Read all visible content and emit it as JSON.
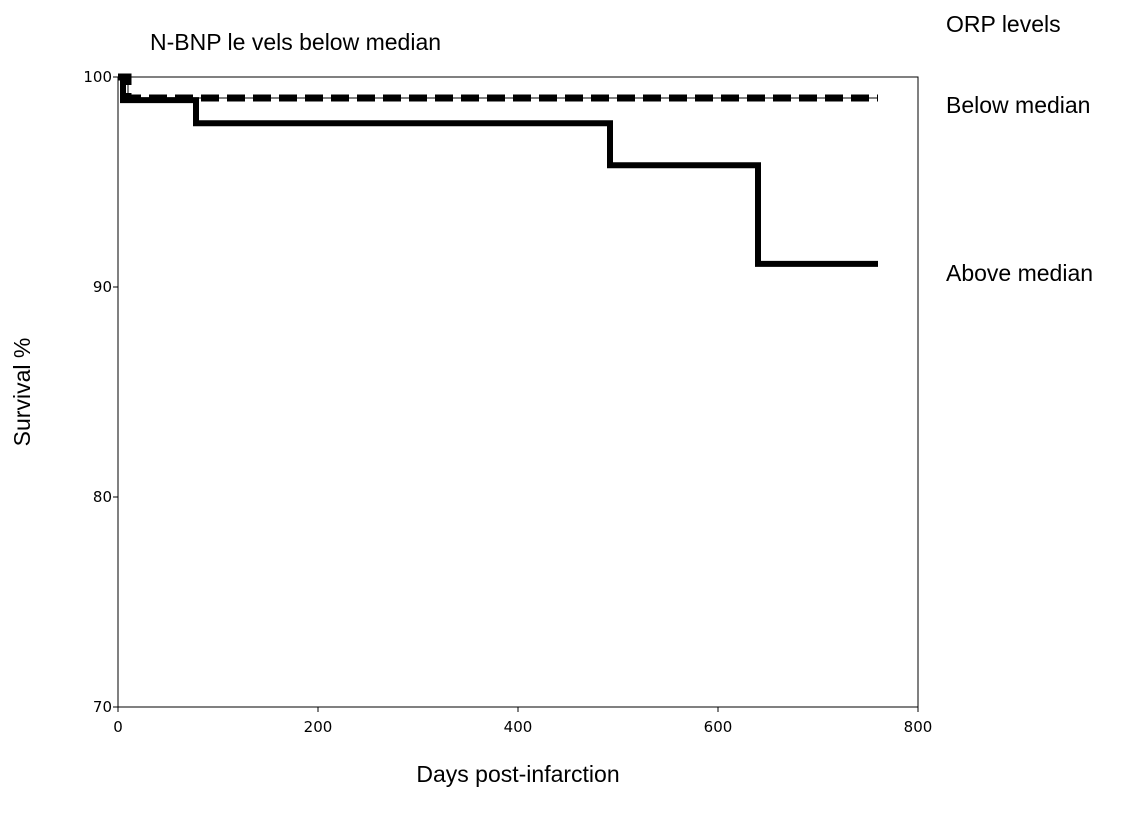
{
  "chart_data": {
    "type": "line",
    "subtitle": "N-BNP le vels below median",
    "legend_title": "ORP levels",
    "xlabel": "Days post-infarction",
    "ylabel": "Survival %",
    "xlim": [
      0,
      800
    ],
    "ylim": [
      70,
      100
    ],
    "xticks": [
      0,
      200,
      400,
      600,
      800
    ],
    "yticks": [
      70,
      80,
      90,
      100
    ],
    "grid": false,
    "legend_position": "right",
    "series": [
      {
        "name": "Below median",
        "style": "dashed",
        "color": "#000000",
        "x": [
          0,
          10,
          10,
          760
        ],
        "y": [
          100,
          100,
          99.0,
          99.0
        ]
      },
      {
        "name": "Above median",
        "style": "solid",
        "color": "#000000",
        "x": [
          0,
          5,
          5,
          18,
          18,
          78,
          78,
          492,
          492,
          640,
          640,
          760
        ],
        "y": [
          100,
          100,
          98.9,
          98.9,
          98.9,
          98.9,
          97.8,
          97.8,
          95.8,
          95.8,
          91.1,
          91.1
        ]
      }
    ]
  }
}
